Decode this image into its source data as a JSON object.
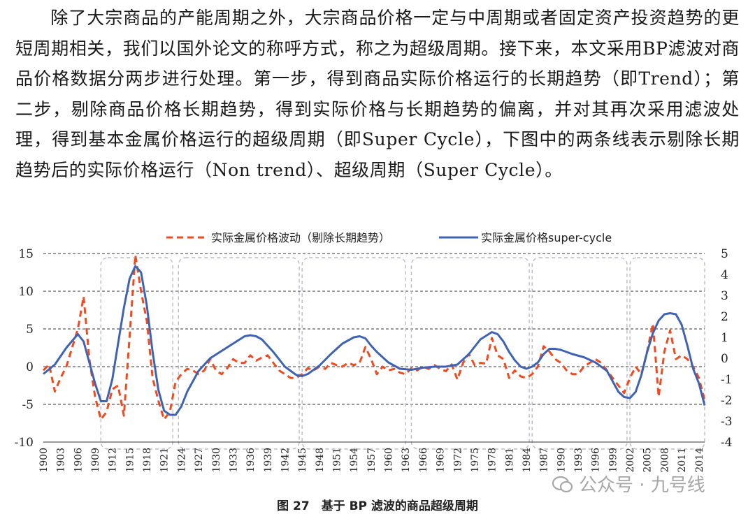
{
  "paragraph": "除了大宗商品的产能周期之外，大宗商品价格一定与中周期或者固定资产投资趋势的更短周期相关，我们以国外论文的称呼方式，称之为超级周期。接下来，本文采用BP滤波对商品价格数据分两步进行处理。第一步，得到商品实际价格运行的长期趋势（即Trend）；第二步，剔除商品价格长期趋势，得到实际价格与长期趋势的偏离，并对其再次采用滤波处理，得到基本金属价格运行的超级周期（即Super Cycle），下图中的两条线表示剔除长期趋势后的实际价格运行（Non trend）、超级周期（Super Cycle）。",
  "caption": "图 27　基于 BP 滤波的商品超级周期",
  "watermark": "公众号 · 九号线",
  "chart_data": {
    "type": "line",
    "title": "",
    "x_tick_labels": [
      "1900",
      "1903",
      "1906",
      "1909",
      "1912",
      "1915",
      "1918",
      "1921",
      "1924",
      "1927",
      "1930",
      "1933",
      "1936",
      "1939",
      "1942",
      "1945",
      "1948",
      "1951",
      "1954",
      "1957",
      "1960",
      "1963",
      "1966",
      "1969",
      "1972",
      "1975",
      "1978",
      "1981",
      "1984",
      "1987",
      "1990",
      "1993",
      "1996",
      "1999",
      "2002",
      "2005",
      "2008",
      "2011",
      "2014"
    ],
    "left_axis": {
      "ticks": [
        -10,
        -5,
        0,
        5,
        10,
        15
      ],
      "tick_labels": [
        "-10",
        "-5",
        "0",
        "5",
        "10",
        "15"
      ],
      "range": [
        -10,
        15
      ]
    },
    "right_axis": {
      "ticks": [
        -4,
        -3,
        -2,
        -1,
        0,
        1,
        2,
        3,
        4,
        5
      ],
      "tick_labels": [
        "-4",
        "-3",
        "-2",
        "-1",
        "0",
        "1",
        "2",
        "3",
        "4",
        "5"
      ],
      "range": [
        -4,
        5
      ]
    },
    "legend": [
      "实际金属价格波动（剔除长期趋势）",
      "实际金属价格super-cycle"
    ],
    "series": [
      {
        "name": "实际金属价格波动（剔除长期趋势）",
        "axis": "left",
        "color": "#f04a1e",
        "style": "dashed",
        "x": [
          1900,
          1901,
          1902,
          1903,
          1904,
          1905,
          1906,
          1907,
          1908,
          1909,
          1910,
          1911,
          1912,
          1913,
          1914,
          1915,
          1916,
          1917,
          1918,
          1919,
          1920,
          1921,
          1922,
          1923,
          1924,
          1925,
          1926,
          1927,
          1928,
          1929,
          1930,
          1931,
          1932,
          1933,
          1934,
          1935,
          1936,
          1937,
          1938,
          1939,
          1940,
          1941,
          1942,
          1943,
          1944,
          1945,
          1946,
          1947,
          1948,
          1949,
          1950,
          1951,
          1952,
          1953,
          1954,
          1955,
          1956,
          1957,
          1958,
          1959,
          1960,
          1961,
          1962,
          1963,
          1964,
          1965,
          1966,
          1967,
          1968,
          1969,
          1970,
          1971,
          1972,
          1973,
          1974,
          1975,
          1976,
          1977,
          1978,
          1979,
          1980,
          1981,
          1982,
          1983,
          1984,
          1985,
          1986,
          1987,
          1988,
          1989,
          1990,
          1991,
          1992,
          1993,
          1994,
          1995,
          1996,
          1997,
          1998,
          1999,
          2000,
          2001,
          2002,
          2003,
          2004,
          2005,
          2006,
          2007,
          2008,
          2009,
          2010,
          2011,
          2012,
          2013,
          2014,
          2015
        ],
        "values": [
          -0.5,
          0.3,
          -3.3,
          -1.5,
          0.0,
          2.5,
          5.0,
          9.3,
          1.0,
          -4.0,
          -7.0,
          -6.0,
          -3.0,
          -2.5,
          -6.5,
          4.0,
          14.8,
          10.0,
          6.0,
          -1.5,
          -4.5,
          -7.0,
          -6.0,
          -2.0,
          -1.0,
          -0.3,
          -0.5,
          -1.0,
          -0.5,
          1.0,
          -0.5,
          -1.0,
          -0.2,
          1.0,
          0.5,
          0.5,
          1.5,
          0.8,
          1.2,
          1.5,
          0.5,
          -0.5,
          -1.0,
          -1.5,
          -1.5,
          -1.0,
          -0.2,
          -0.5,
          0.0,
          -0.3,
          0.5,
          0.2,
          0.0,
          0.5,
          0.2,
          0.5,
          2.6,
          1.0,
          -1.0,
          0.0,
          -0.5,
          -0.3,
          -0.8,
          -1.0,
          -0.2,
          -0.5,
          0.0,
          -0.3,
          0.2,
          -0.3,
          -0.6,
          0.3,
          -1.7,
          0.5,
          1.7,
          0.2,
          0.5,
          0.4,
          3.8,
          1.5,
          1.0,
          -1.5,
          -0.5,
          -1.3,
          -1.5,
          -1.0,
          0.0,
          2.7,
          2.0,
          1.0,
          0.5,
          -0.5,
          -1.0,
          -1.0,
          0.0,
          0.5,
          1.0,
          0.5,
          -0.5,
          -1.5,
          -2.5,
          -3.5,
          -1.5,
          0.0,
          -1.0,
          2.0,
          5.7,
          -4.0,
          2.0,
          4.8,
          1.0,
          1.5,
          1.0,
          0.0,
          -1.5,
          -4.5
        ]
      },
      {
        "name": "实际金属价格super-cycle",
        "axis": "right",
        "color": "#3f63b3",
        "style": "solid",
        "x": [
          1900,
          1902,
          1904,
          1906,
          1907,
          1908,
          1909,
          1910,
          1911,
          1912,
          1913,
          1914,
          1915,
          1916,
          1917,
          1918,
          1919,
          1920,
          1921,
          1922,
          1923,
          1924,
          1925,
          1927,
          1929,
          1931,
          1933,
          1935,
          1936,
          1937,
          1938,
          1940,
          1942,
          1944,
          1945,
          1946,
          1948,
          1950,
          1952,
          1954,
          1955,
          1956,
          1957,
          1958,
          1960,
          1962,
          1964,
          1966,
          1968,
          1970,
          1972,
          1974,
          1976,
          1978,
          1979,
          1980,
          1981,
          1982,
          1983,
          1984,
          1985,
          1986,
          1987,
          1988,
          1989,
          1990,
          1991,
          1992,
          1994,
          1996,
          1998,
          1999,
          2000,
          2001,
          2002,
          2003,
          2004,
          2005,
          2006,
          2007,
          2008,
          2009,
          2010,
          2011,
          2012,
          2013,
          2014,
          2015
        ],
        "values": [
          -0.75,
          -0.3,
          0.5,
          1.15,
          0.8,
          -0.2,
          -1.2,
          -2.05,
          -2.05,
          -1.0,
          0.7,
          2.4,
          3.8,
          4.4,
          4.1,
          2.5,
          0.3,
          -1.5,
          -2.5,
          -2.7,
          -2.7,
          -2.3,
          -1.6,
          -0.6,
          0.0,
          0.35,
          0.7,
          1.05,
          1.1,
          1.05,
          0.9,
          0.3,
          -0.4,
          -0.8,
          -0.85,
          -0.75,
          -0.35,
          0.2,
          0.7,
          1.0,
          1.05,
          0.95,
          0.6,
          0.3,
          -0.2,
          -0.5,
          -0.55,
          -0.45,
          -0.4,
          -0.4,
          -0.3,
          0.2,
          0.9,
          1.25,
          1.15,
          0.8,
          0.3,
          -0.1,
          -0.4,
          -0.5,
          -0.4,
          -0.2,
          0.2,
          0.45,
          0.45,
          0.4,
          0.3,
          0.2,
          0.05,
          -0.2,
          -0.6,
          -1.1,
          -1.6,
          -1.85,
          -1.9,
          -1.6,
          -0.8,
          0.3,
          1.2,
          1.8,
          2.1,
          2.15,
          2.1,
          1.6,
          0.6,
          -0.5,
          -1.2,
          -2.25
        ]
      }
    ],
    "gridlines": "horizontal dashed",
    "legend_position": "top"
  }
}
